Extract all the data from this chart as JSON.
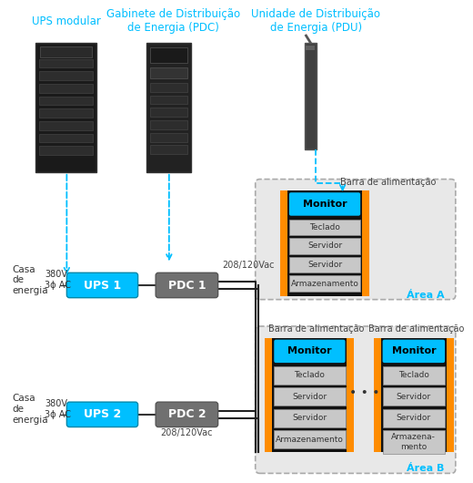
{
  "title_ups": "UPS modular",
  "title_pdc": "Gabinete de Distribuição\nde Energia (PDC)",
  "title_pdu": "Unidade de Distribuição\nde Energia (PDU)",
  "label_barra": "Barra de alimentação",
  "label_monitor": "Monitor",
  "label_teclado": "Teclado",
  "label_servidor": "Servidor",
  "label_armazenamento": "Armazenamento",
  "label_area_a": "Área A",
  "label_area_b": "Área B",
  "label_casa": "Casa\nde\nenergia",
  "label_380v": "380V\n3ϕ AC",
  "label_208": "208/120Vac",
  "label_ups1": "UPS 1",
  "label_ups2": "UPS 2",
  "label_pdc1": "PDC 1",
  "label_pdc2": "PDC 2",
  "color_cyan": "#00BFFF",
  "color_gray_box": "#808080",
  "color_gray_area": "#D3D3D3",
  "color_gray_area_border": "#A9A9A9",
  "color_orange": "#FF8C00",
  "color_black": "#1a1a1a",
  "color_white": "#FFFFFF",
  "color_cyan_text": "#00BFFF",
  "color_dark_bg": "#2a2a2a",
  "color_light_gray": "#CCCCCC",
  "color_mid_gray": "#AAAAAA",
  "bg_color": "#FFFFFF"
}
